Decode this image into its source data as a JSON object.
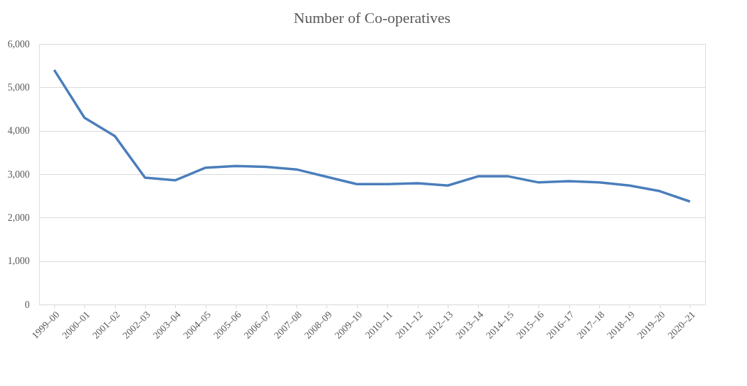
{
  "chart_data": {
    "type": "line",
    "title": "Number of Co-operatives",
    "categories": [
      "1999–00",
      "2000–01",
      "2001–02",
      "2002–03",
      "2003–04",
      "2004–05",
      "2005–06",
      "2006–07",
      "2007–08",
      "2008–09",
      "2009–10",
      "2010–11",
      "2011–12",
      "2012–13",
      "2013–14",
      "2014–15",
      "2015–16",
      "2016–17",
      "2017–18",
      "2018–19",
      "2019–20",
      "2020–21"
    ],
    "series": [
      {
        "color": "#4a7ebb",
        "values": [
          5400,
          4300,
          3880,
          2920,
          2860,
          3150,
          3190,
          3170,
          3110,
          2940,
          2770,
          2770,
          2790,
          2740,
          2950,
          2950,
          2810,
          2840,
          2810,
          2740,
          2610,
          2370
        ]
      }
    ],
    "ylim": [
      0,
      6000
    ],
    "yticks": [
      {
        "value": 0,
        "label": "0"
      },
      {
        "value": 1000,
        "label": "1,000"
      },
      {
        "value": 2000,
        "label": "2,000"
      },
      {
        "value": 3000,
        "label": "3,000"
      },
      {
        "value": 4000,
        "label": "4,000"
      },
      {
        "value": 5000,
        "label": "5,000"
      },
      {
        "value": 6000,
        "label": "6,000"
      }
    ],
    "grid": "y",
    "marker": "none",
    "line_style": "solid"
  }
}
